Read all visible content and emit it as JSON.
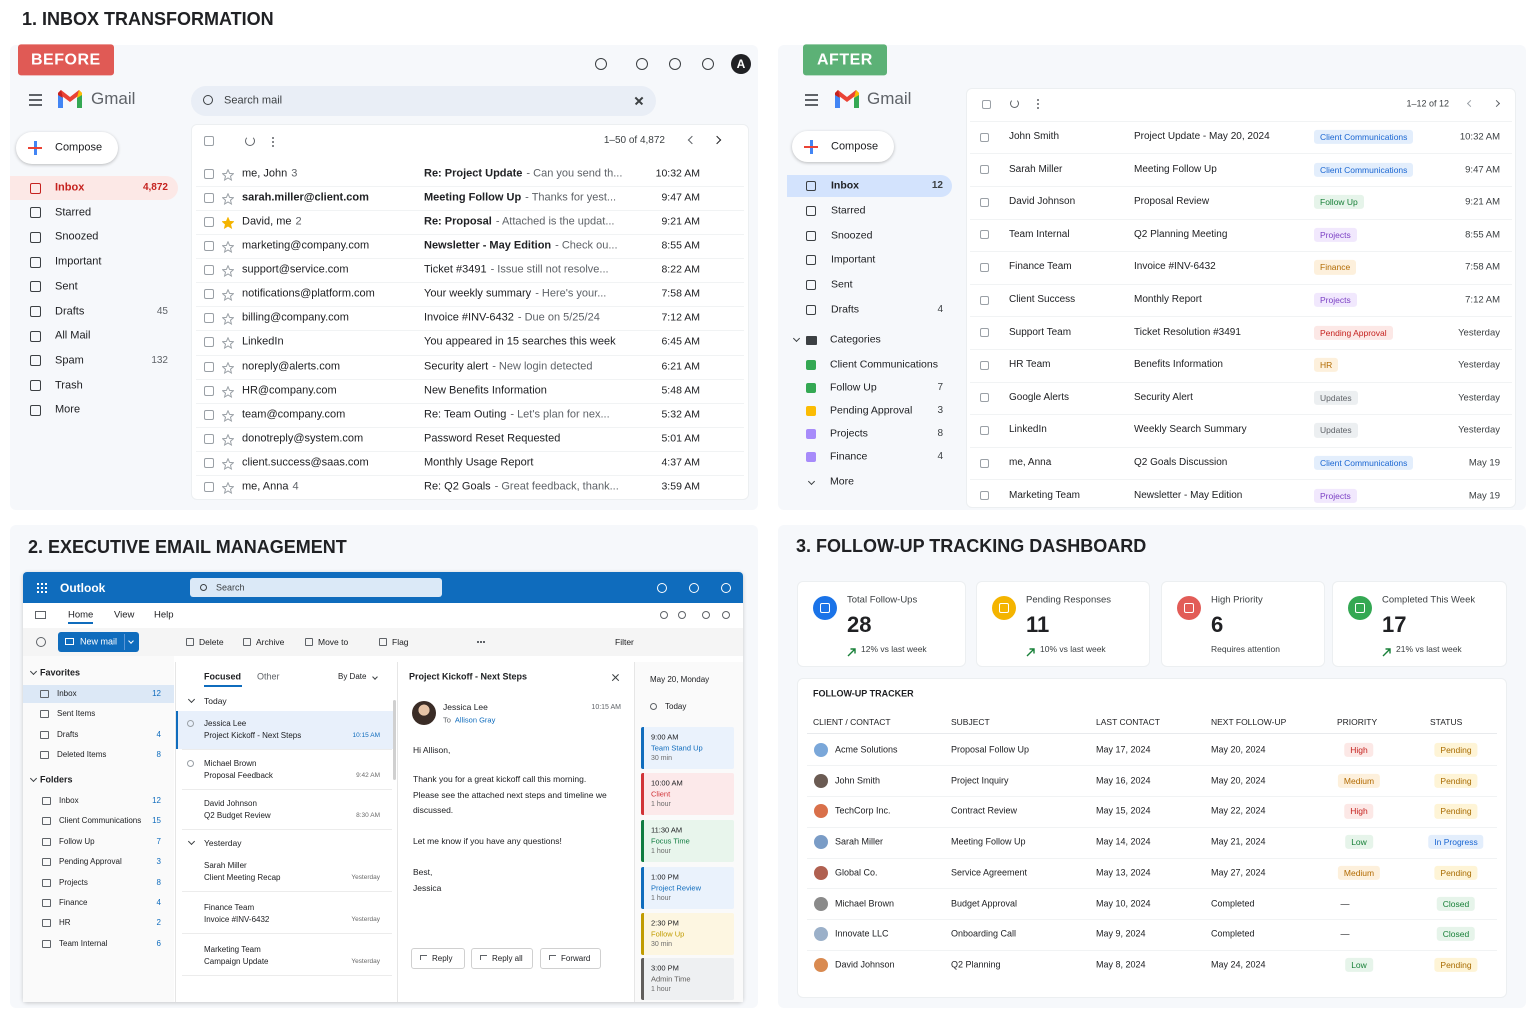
{
  "inbox_transformation": {
    "title": "1. INBOX TRANSFORMATION",
    "before": {
      "badge": "BEFORE",
      "app": "Gmail",
      "avatar": "A",
      "search": "Search mail",
      "compose": "Compose",
      "pager": "1–50 of 4,872",
      "nav": [
        {
          "label": "Inbox",
          "count": "4,872",
          "active": true
        },
        {
          "label": "Starred"
        },
        {
          "label": "Snoozed"
        },
        {
          "label": "Important"
        },
        {
          "label": "Sent"
        },
        {
          "label": "Drafts",
          "count": 45
        },
        {
          "label": "All Mail"
        },
        {
          "label": "Spam",
          "count": 132
        },
        {
          "label": "Trash"
        },
        {
          "label": "More"
        }
      ],
      "emails": [
        {
          "from": "me, John",
          "thread": 3,
          "subject": "Re: Project Update",
          "snippet": "- Can you send th...",
          "time": "10:32 AM",
          "unread": true
        },
        {
          "from": "sarah.miller@client.com",
          "subject": "Meeting Follow Up",
          "snippet": "- Thanks for yest...",
          "time": "9:47 AM",
          "unread": true
        },
        {
          "from": "David, me",
          "thread": 2,
          "subject": "Re: Proposal",
          "snippet": "- Attached is the updat...",
          "time": "9:21 AM",
          "unread": true,
          "starred": true
        },
        {
          "from": "marketing@company.com",
          "subject": "Newsletter - May Edition",
          "snippet": "- Check ou...",
          "time": "8:55 AM",
          "unread": true
        },
        {
          "from": "support@service.com",
          "subject": "Ticket #3491",
          "snippet": "- Issue still not resolve...",
          "time": "8:22 AM"
        },
        {
          "from": "notifications@platform.com",
          "subject": "Your weekly summary",
          "snippet": "- Here's your...",
          "time": "7:58 AM"
        },
        {
          "from": "billing@company.com",
          "subject": "Invoice #INV-6432",
          "snippet": "- Due on 5/25/24",
          "time": "7:12 AM"
        },
        {
          "from": "LinkedIn",
          "subject": "You appeared in 15 searches this week",
          "time": "6:45 AM"
        },
        {
          "from": "noreply@alerts.com",
          "subject": "Security alert",
          "snippet": "- New login detected",
          "time": "6:21 AM"
        },
        {
          "from": "HR@company.com",
          "subject": "New Benefits Information",
          "time": "5:48 AM"
        },
        {
          "from": "team@company.com",
          "subject": "Re: Team Outing",
          "snippet": "- Let's plan for nex...",
          "time": "5:32 AM"
        },
        {
          "from": "donotreply@system.com",
          "subject": "Password Reset Requested",
          "time": "5:01 AM"
        },
        {
          "from": "client.success@saas.com",
          "subject": "Monthly Usage Report",
          "time": "4:37 AM"
        },
        {
          "from": "me, Anna",
          "thread": 4,
          "subject": "Re: Q2 Goals",
          "snippet": "- Great feedback, thank...",
          "time": "3:59 AM"
        }
      ]
    },
    "after": {
      "badge": "AFTER",
      "app": "Gmail",
      "compose": "Compose",
      "pager": "1–12 of 12",
      "nav": [
        {
          "label": "Inbox",
          "count": 12,
          "active": true
        },
        {
          "label": "Starred"
        },
        {
          "label": "Snoozed"
        },
        {
          "label": "Important"
        },
        {
          "label": "Sent"
        },
        {
          "label": "Drafts",
          "count": 4
        }
      ],
      "categories_title": "Categories",
      "categories": [
        {
          "label": "Client Communications",
          "color": "#34a853"
        },
        {
          "label": "Follow Up",
          "count": 7,
          "color": "#34a853"
        },
        {
          "label": "Pending Approval",
          "count": 3,
          "color": "#fbbc04"
        },
        {
          "label": "Projects",
          "count": 8,
          "color": "#a78bfa"
        },
        {
          "label": "Finance",
          "count": 4,
          "color": "#a78bfa"
        }
      ],
      "more": "More",
      "emails": [
        {
          "from": "John Smith",
          "subject": "Project Update - May 20, 2024",
          "label": "Client Communications",
          "tone": "blue",
          "time": "10:32 AM"
        },
        {
          "from": "Sarah Miller",
          "subject": "Meeting Follow Up",
          "label": "Client Communications",
          "tone": "blue",
          "time": "9:47 AM"
        },
        {
          "from": "David Johnson",
          "subject": "Proposal Review",
          "label": "Follow Up",
          "tone": "green",
          "time": "9:21 AM"
        },
        {
          "from": "Team Internal",
          "subject": "Q2 Planning Meeting",
          "label": "Projects",
          "tone": "purple",
          "time": "8:55 AM"
        },
        {
          "from": "Finance Team",
          "subject": "Invoice #INV-6432",
          "label": "Finance",
          "tone": "orange",
          "time": "7:58 AM"
        },
        {
          "from": "Client Success",
          "subject": "Monthly Report",
          "label": "Projects",
          "tone": "purple",
          "time": "7:12 AM"
        },
        {
          "from": "Support Team",
          "subject": "Ticket Resolution #3491",
          "label": "Pending Approval",
          "tone": "red",
          "time": "Yesterday"
        },
        {
          "from": "HR Team",
          "subject": "Benefits Information",
          "label": "HR",
          "tone": "orange",
          "time": "Yesterday"
        },
        {
          "from": "Google Alerts",
          "subject": "Security Alert",
          "label": "Updates",
          "tone": "gray",
          "time": "Yesterday"
        },
        {
          "from": "LinkedIn",
          "subject": "Weekly Search Summary",
          "label": "Updates",
          "tone": "gray",
          "time": "Yesterday"
        },
        {
          "from": "me, Anna",
          "subject": "Q2 Goals Discussion",
          "label": "Client Communications",
          "tone": "blue",
          "time": "May 19"
        },
        {
          "from": "Marketing Team",
          "subject": "Newsletter - May Edition",
          "label": "Projects",
          "tone": "purple",
          "time": "May 19"
        }
      ]
    }
  },
  "executive_email": {
    "title": "2. EXECUTIVE EMAIL MANAGEMENT",
    "app": "Outlook",
    "search": "Search",
    "tabs": [
      "Home",
      "View",
      "Help"
    ],
    "new_mail": "New mail",
    "actions": [
      "Delete",
      "Archive",
      "Move to",
      "Flag"
    ],
    "filter": "Filter",
    "favorites_title": "Favorites",
    "favorites": [
      {
        "label": "Inbox",
        "count": 12,
        "active": true
      },
      {
        "label": "Sent Items"
      },
      {
        "label": "Drafts",
        "count": 4
      },
      {
        "label": "Deleted Items",
        "count": 8
      }
    ],
    "folders_title": "Folders",
    "folders": [
      {
        "label": "Inbox",
        "count": 12
      },
      {
        "label": "Client Communications",
        "count": 15
      },
      {
        "label": "Follow Up",
        "count": 7
      },
      {
        "label": "Pending Approval",
        "count": 3
      },
      {
        "label": "Projects",
        "count": 8
      },
      {
        "label": "Finance",
        "count": 4
      },
      {
        "label": "HR",
        "count": 2
      },
      {
        "label": "Team Internal",
        "count": 6
      }
    ],
    "list_tabs": [
      "Focused",
      "Other"
    ],
    "sort": "By Date",
    "groups": [
      {
        "label": "Today",
        "items": [
          {
            "from": "Jessica Lee",
            "subject": "Project Kickoff - Next Steps",
            "time": "10:15 AM",
            "selected": true
          },
          {
            "from": "Michael Brown",
            "subject": "Proposal Feedback",
            "time": "9:42 AM"
          },
          {
            "from": "David Johnson",
            "subject": "Q2 Budget Review",
            "time": "8:30 AM"
          }
        ]
      },
      {
        "label": "Yesterday",
        "items": [
          {
            "from": "Sarah Miller",
            "subject": "Client Meeting Recap",
            "time": "Yesterday"
          },
          {
            "from": "Finance Team",
            "subject": "Invoice #INV-6432",
            "time": "Yesterday"
          },
          {
            "from": "Marketing Team",
            "subject": "Campaign Update",
            "time": "Yesterday"
          }
        ]
      }
    ],
    "reading": {
      "subject": "Project Kickoff - Next Steps",
      "from": "Jessica Lee",
      "to_label": "To",
      "to": "Allison Gray",
      "time": "10:15 AM",
      "body": [
        "Hi Allison,",
        "Thank you for a great kickoff call this morning. Please see the attached next steps and timeline we discussed.",
        "Let me know if you have any questions!",
        "Best,",
        "Jessica"
      ],
      "buttons": [
        "Reply",
        "Reply all",
        "Forward"
      ]
    },
    "calendar": {
      "date": "May 20, Monday",
      "today": "Today",
      "events": [
        {
          "time": "9:00 AM",
          "title": "Team Stand Up",
          "duration": "30 min",
          "tone": "blue"
        },
        {
          "time": "10:00 AM",
          "title": "Client",
          "duration": "1 hour",
          "tone": "red"
        },
        {
          "time": "11:30 AM",
          "title": "Focus Time",
          "duration": "1 hour",
          "tone": "green"
        },
        {
          "time": "1:00 PM",
          "title": "Project Review",
          "duration": "1 hour",
          "tone": "blue"
        },
        {
          "time": "2:30 PM",
          "title": "Follow Up",
          "duration": "30 min",
          "tone": "yellow"
        },
        {
          "time": "3:00 PM",
          "title": "Admin Time",
          "duration": "1 hour",
          "tone": "gray"
        }
      ]
    }
  },
  "followup_dashboard": {
    "title": "3. FOLLOW-UP TRACKING DASHBOARD",
    "cards": [
      {
        "label": "Total Follow-Ups",
        "value": 28,
        "note": "12% vs last week",
        "trend": true,
        "color": "#1a73e8"
      },
      {
        "label": "Pending Responses",
        "value": 11,
        "note": "10% vs last week",
        "trend": true,
        "color": "#f4b400"
      },
      {
        "label": "High Priority",
        "value": 6,
        "note": "Requires attention",
        "color": "#e25c57"
      },
      {
        "label": "Completed This Week",
        "value": 17,
        "note": "21% vs last week",
        "trend": true,
        "color": "#34a853"
      }
    ],
    "table": {
      "title": "FOLLOW-UP TRACKER",
      "columns": [
        "CLIENT / CONTACT",
        "SUBJECT",
        "LAST CONTACT",
        "NEXT FOLLOW-UP",
        "PRIORITY",
        "STATUS"
      ],
      "rows": [
        {
          "cells": [
            "Acme Solutions",
            "Proposal Follow Up",
            "May 17, 2024",
            "May 20, 2024",
            "High",
            "Pending"
          ],
          "priority_tone": "red",
          "status_tone": "yellow"
        },
        {
          "cells": [
            "John Smith",
            "Project Inquiry",
            "May 16, 2024",
            "May 20, 2024",
            "Medium",
            "Pending"
          ],
          "priority_tone": "orange",
          "status_tone": "yellow"
        },
        {
          "cells": [
            "TechCorp Inc.",
            "Contract Review",
            "May 15, 2024",
            "May 22, 2024",
            "High",
            "Pending"
          ],
          "priority_tone": "red",
          "status_tone": "yellow"
        },
        {
          "cells": [
            "Sarah Miller",
            "Meeting Follow Up",
            "May 14, 2024",
            "May 21, 2024",
            "Low",
            "In Progress"
          ],
          "priority_tone": "green",
          "status_tone": "blue"
        },
        {
          "cells": [
            "Global Co.",
            "Service Agreement",
            "May 13, 2024",
            "May 27, 2024",
            "Medium",
            "Pending"
          ],
          "priority_tone": "orange",
          "status_tone": "yellow"
        },
        {
          "cells": [
            "Michael Brown",
            "Budget Approval",
            "May 10, 2024",
            "Completed",
            "—",
            "Closed"
          ],
          "status_tone": "green"
        },
        {
          "cells": [
            "Innovate LLC",
            "Onboarding Call",
            "May 9, 2024",
            "Completed",
            "—",
            "Closed"
          ],
          "status_tone": "green"
        },
        {
          "cells": [
            "David Johnson",
            "Q2 Planning",
            "May 8, 2024",
            "May 24, 2024",
            "Low",
            "Pending"
          ],
          "priority_tone": "green",
          "status_tone": "yellow"
        }
      ]
    }
  }
}
